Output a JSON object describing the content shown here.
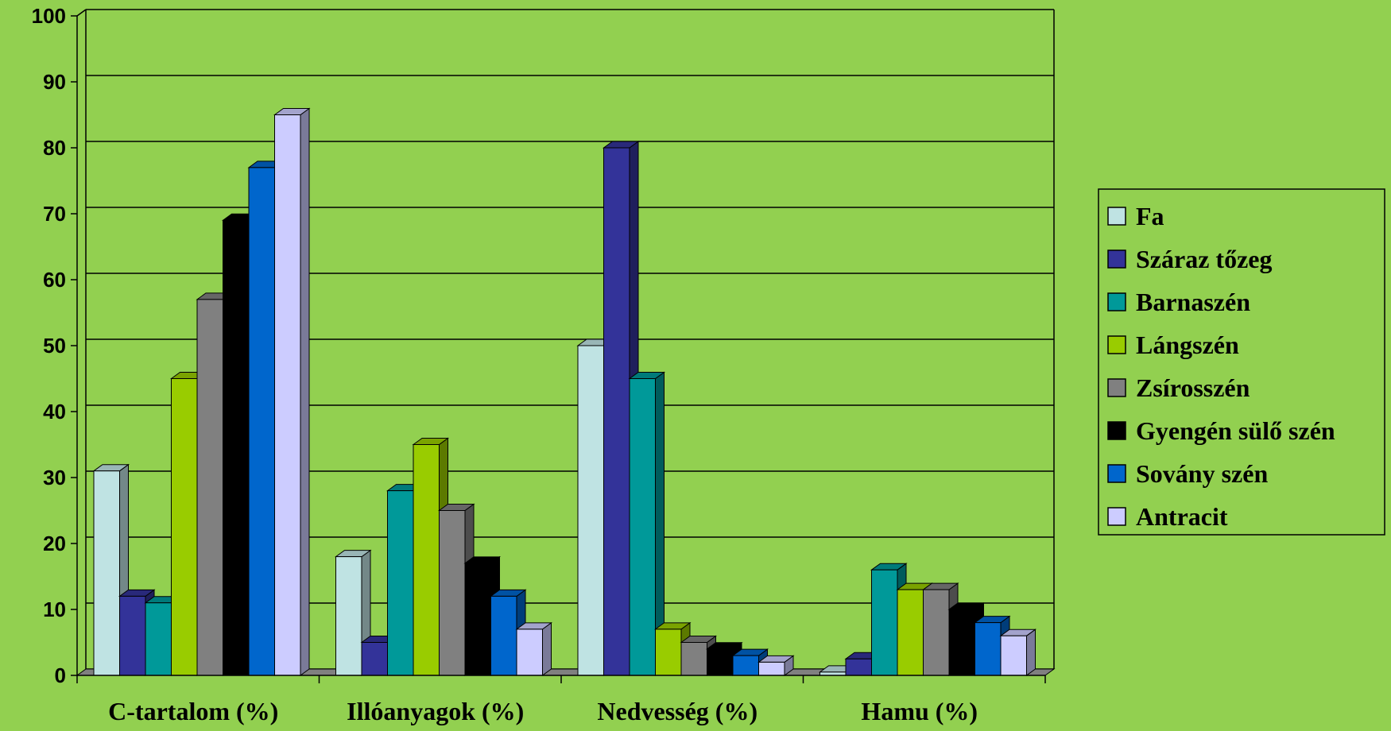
{
  "chart_data": {
    "type": "bar",
    "categories": [
      "C-tartalom (%)",
      "Illóanyagok (%)",
      "Nedvesség (%)",
      "Hamu (%)"
    ],
    "ylim": [
      0,
      100
    ],
    "yticks": [
      0,
      10,
      20,
      30,
      40,
      50,
      60,
      70,
      80,
      90,
      100
    ],
    "grid": true,
    "legend_position": "right",
    "series": [
      {
        "name": "Fa",
        "color": "#bfe3e3",
        "values": [
          31,
          18,
          50,
          0.5
        ]
      },
      {
        "name": "Száraz tőzeg",
        "color": "#333399",
        "values": [
          12,
          5,
          80,
          2.5
        ]
      },
      {
        "name": "Barnaszén",
        "color": "#009999",
        "values": [
          11,
          28,
          45,
          16
        ]
      },
      {
        "name": "Lángszén",
        "color": "#99cc00",
        "values": [
          45,
          35,
          7,
          13
        ]
      },
      {
        "name": "Zsírosszén",
        "color": "#808080",
        "values": [
          57,
          25,
          5,
          13
        ]
      },
      {
        "name": "Gyengén sülő szén",
        "color": "#000000",
        "values": [
          69,
          17,
          4,
          10
        ]
      },
      {
        "name": "Sovány szén",
        "color": "#0066cc",
        "values": [
          77,
          12,
          3,
          8
        ]
      },
      {
        "name": "Antracit",
        "color": "#ccccff",
        "values": [
          85,
          7,
          2,
          6
        ]
      }
    ]
  }
}
